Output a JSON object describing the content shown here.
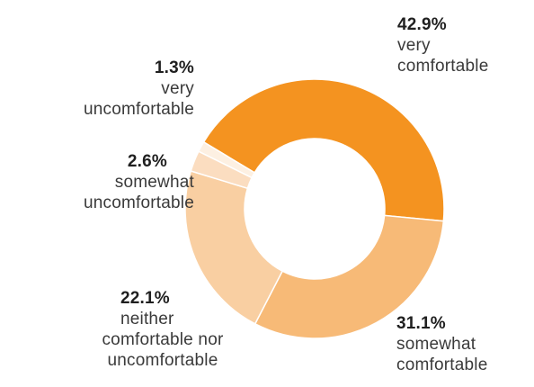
{
  "chart_data": {
    "type": "pie",
    "style": "donut",
    "slices": [
      {
        "label": "very comfortable",
        "value": 42.9,
        "display": "42.9%",
        "color": "#F49320"
      },
      {
        "label": "somewhat comfortable",
        "value": 31.1,
        "display": "31.1%",
        "color": "#F7BA77"
      },
      {
        "label": "neither comfortable nor uncomfortable",
        "value": 22.1,
        "display": "22.1%",
        "color": "#F9CFA2"
      },
      {
        "label": "somewhat uncomfortable",
        "value": 2.6,
        "display": "2.6%",
        "color": "#FBDDC0"
      },
      {
        "label": "very uncomfortable",
        "value": 1.3,
        "display": "1.3%",
        "color": "#FDF0E2"
      }
    ],
    "labels": {
      "very_comfortable": {
        "pct": "42.9%",
        "line1": "very",
        "line2": "comfortable"
      },
      "somewhat_comfortable": {
        "pct": "31.1%",
        "line1": "somewhat",
        "line2": "comfortable"
      },
      "neither": {
        "pct": "22.1%",
        "line1": "neither",
        "line2": "comfortable nor",
        "line3": "uncomfortable"
      },
      "somewhat_uncomfortable": {
        "pct": "2.6%",
        "line1": "somewhat",
        "line2": "uncomfortable"
      },
      "very_uncomfortable": {
        "pct": "1.3%",
        "line1": "very",
        "line2": "uncomfortable"
      }
    }
  }
}
